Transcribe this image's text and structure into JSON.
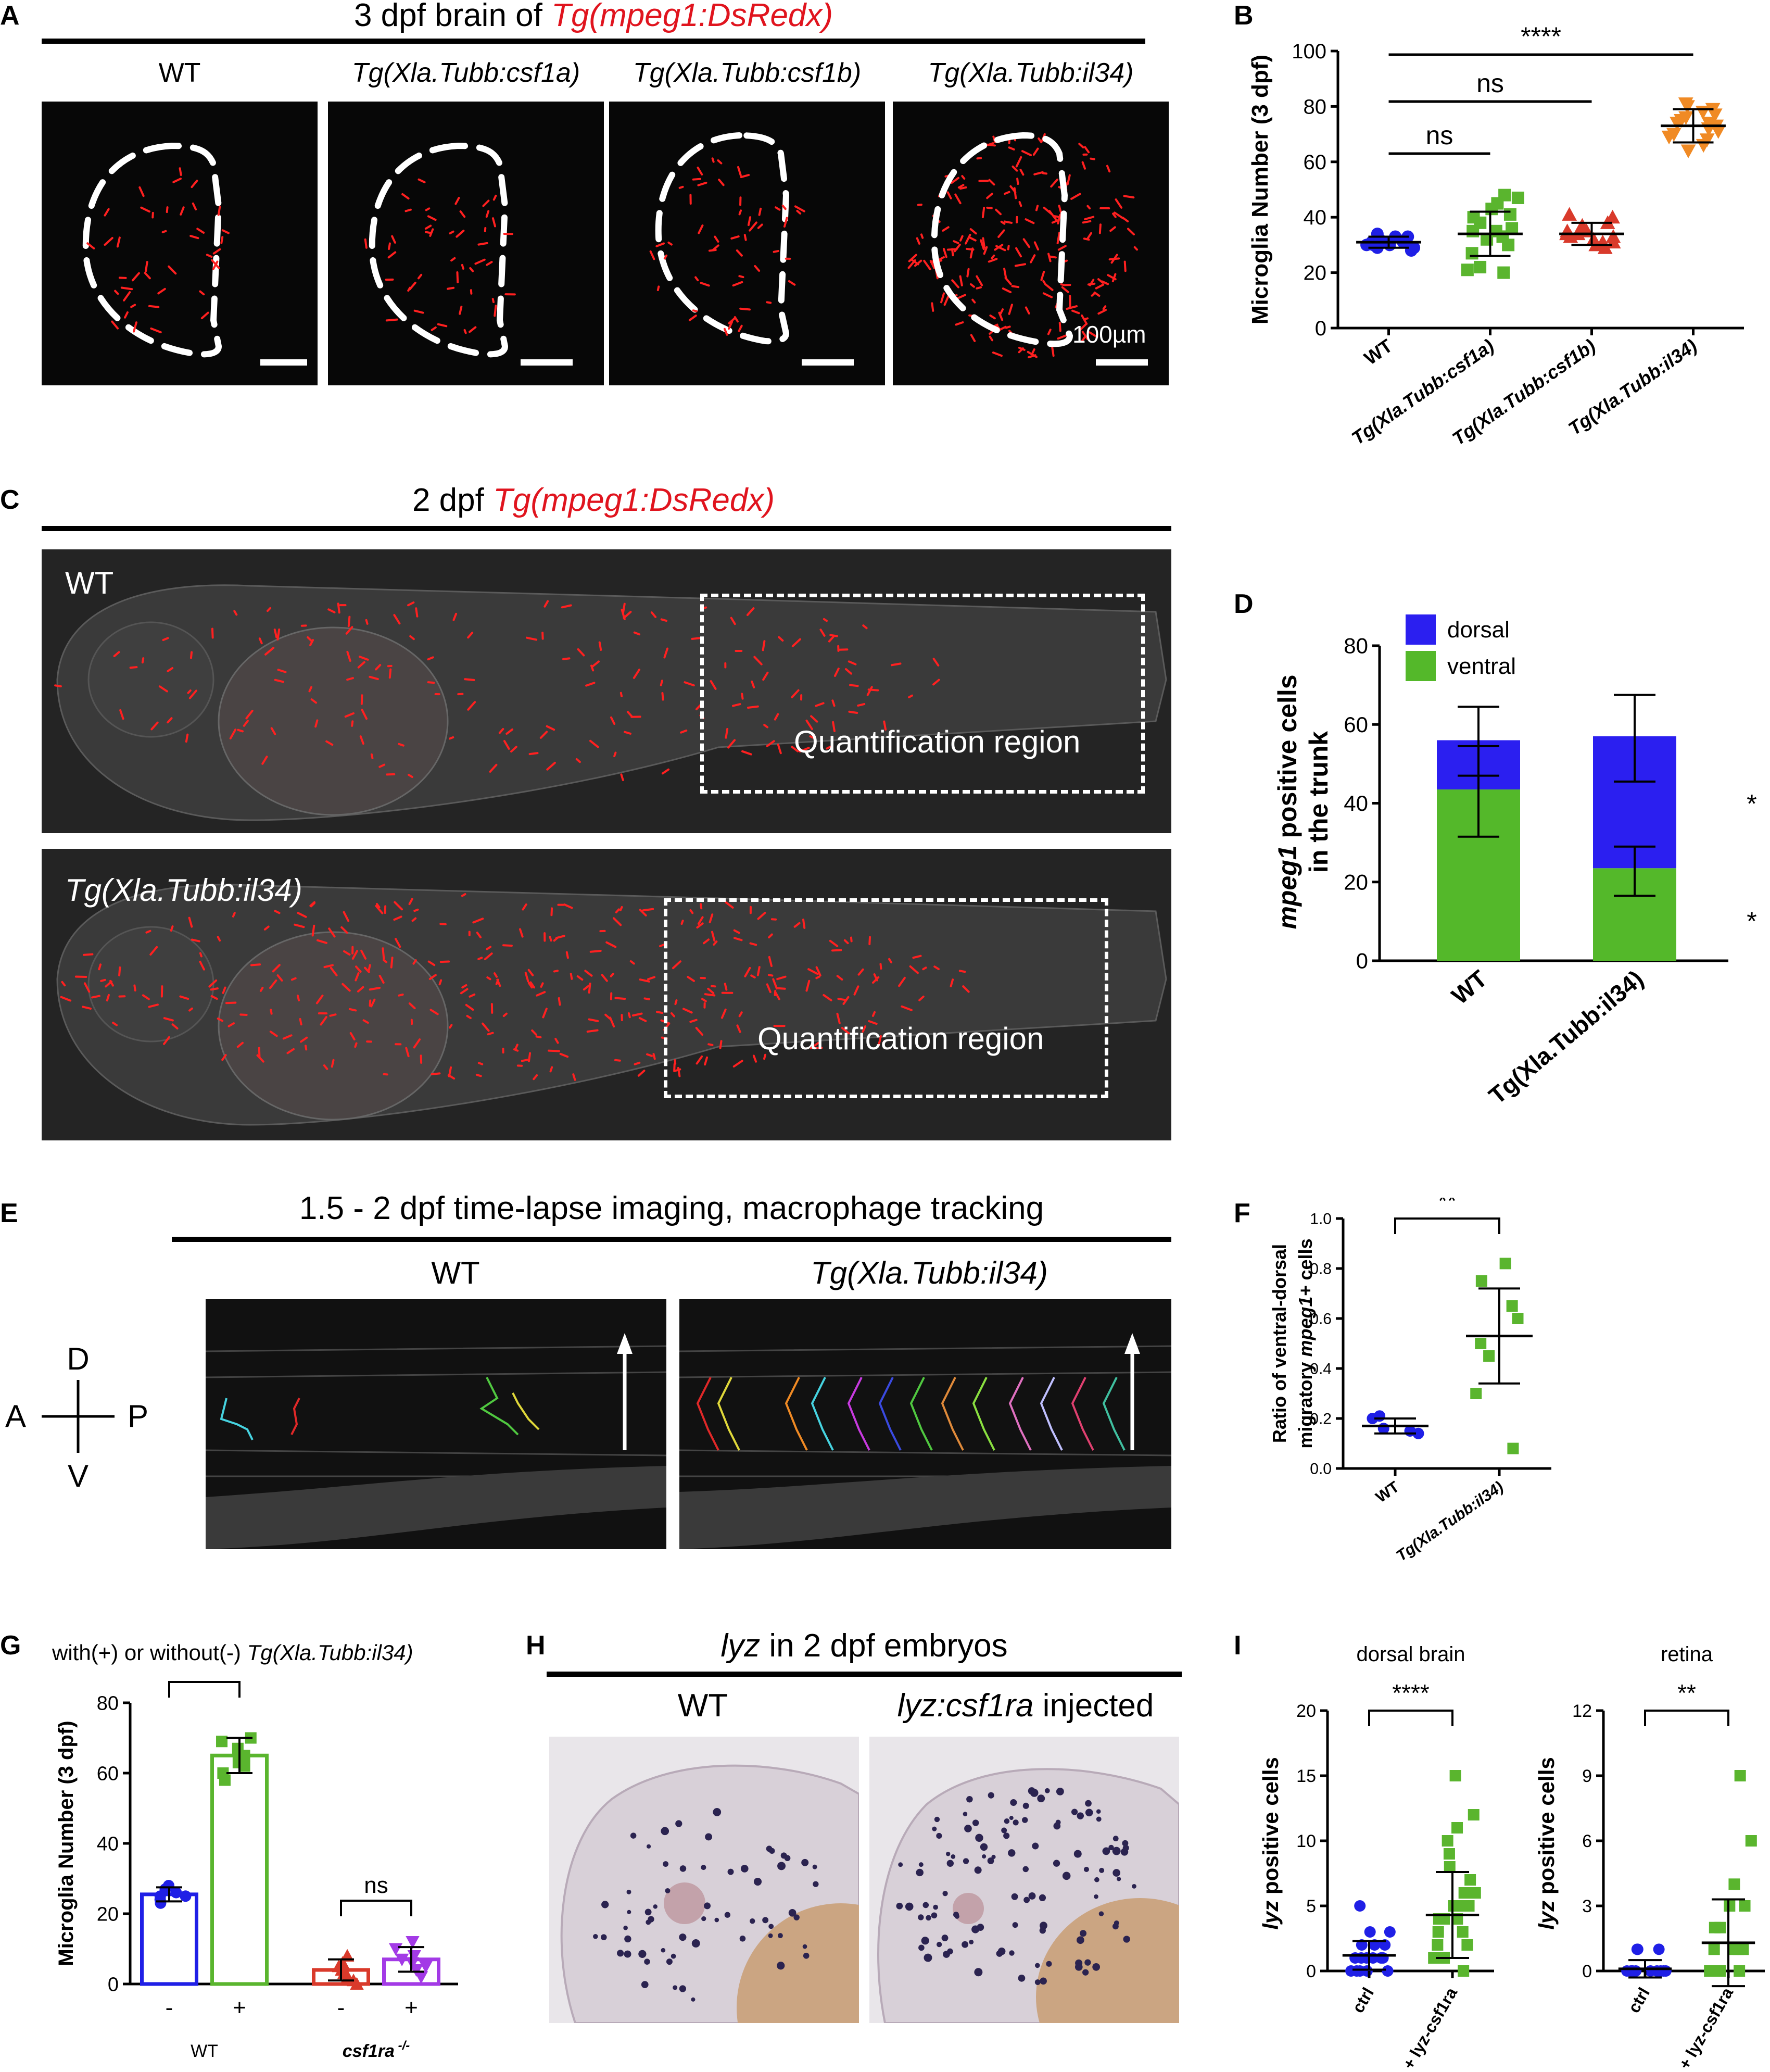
{
  "panel_letters": {
    "A": "A",
    "B": "B",
    "C": "C",
    "D": "D",
    "E": "E",
    "F": "F",
    "G": "G",
    "H": "H",
    "I": "I"
  },
  "panelA": {
    "title_prefix": "3 dpf brain of ",
    "title_transgene": "Tg(mpeg1:DsRedx)",
    "columns": [
      "WT",
      "Tg(Xla.Tubb:csf1a)",
      "Tg(Xla.Tubb:csf1b)",
      "Tg(Xla.Tubb:il34)"
    ],
    "scale_label": "100µm"
  },
  "panelC": {
    "title_prefix": "2 dpf ",
    "title_transgene": "Tg(mpeg1:DsRedx)",
    "top_label": "WT",
    "bottom_label": "Tg(Xla.Tubb:il34)",
    "region_label": "Quantification region"
  },
  "panelE": {
    "title": "1.5 - 2 dpf time-lapse imaging, macrophage tracking",
    "left_label": "WT",
    "right_label": "Tg(Xla.Tubb:il34)",
    "axis": {
      "D": "D",
      "V": "V",
      "A": "A",
      "P": "P"
    }
  },
  "panelG": {
    "header": "with(+) or without(-) ",
    "header_italic": "Tg(Xla.Tubb:il34)"
  },
  "panelH": {
    "title_italic": "lyz",
    "title_rest": " in 2 dpf embryos",
    "left_label": "WT",
    "right_label_italic": "lyz:csf1ra",
    "right_label_rest": " injected"
  },
  "chart_data": [
    {
      "id": "B",
      "type": "scatter",
      "ylabel": "Microglia Number (3 dpf)",
      "ylim": [
        0,
        100
      ],
      "yticks": [
        0,
        20,
        40,
        60,
        80,
        100
      ],
      "categories": [
        "WT",
        "Tg(Xla.Tubb:csf1a)",
        "Tg(Xla.Tubb:csf1b)",
        "Tg(Xla.Tubb:il34)"
      ],
      "colors": [
        "#1f1fe6",
        "#5ab52e",
        "#d93a2b",
        "#f08a24"
      ],
      "markers": [
        "circle",
        "square",
        "triangle-up",
        "triangle-down"
      ],
      "means": [
        31,
        34,
        34,
        73
      ],
      "sd": [
        2,
        8,
        4,
        6
      ],
      "points": [
        [
          28,
          29,
          30,
          30,
          31,
          31,
          31,
          32,
          32,
          33,
          33,
          29,
          30,
          34,
          31
        ],
        [
          20,
          21,
          22,
          27,
          30,
          33,
          35,
          35,
          38,
          40,
          41,
          43,
          45,
          47,
          48,
          36,
          32
        ],
        [
          30,
          31,
          32,
          33,
          33,
          34,
          34,
          35,
          36,
          38,
          40,
          41,
          29,
          31,
          35,
          37
        ],
        [
          64,
          66,
          68,
          69,
          71,
          72,
          73,
          74,
          75,
          76,
          77,
          78,
          79,
          80,
          81,
          72,
          70,
          74
        ]
      ],
      "comparisons": [
        {
          "from": 0,
          "to": 1,
          "label": "ns"
        },
        {
          "from": 0,
          "to": 2,
          "label": "ns"
        },
        {
          "from": 0,
          "to": 3,
          "label": "****"
        }
      ]
    },
    {
      "id": "D",
      "type": "bar",
      "ylabel": "mpeg1 positive cells in the trunk",
      "ylabel_italic": "mpeg1",
      "ylim": [
        0,
        80
      ],
      "yticks": [
        0,
        20,
        40,
        60,
        80
      ],
      "categories": [
        "WT",
        "Tg(Xla.Tubb:il34)"
      ],
      "series": [
        {
          "name": "ventral",
          "color": "#54b82a",
          "values": [
            43.5,
            23.5
          ],
          "err_low": [
            31.5,
            16.5
          ],
          "err_high": [
            54.5,
            29
          ]
        },
        {
          "name": "dorsal",
          "color": "#2b1ff0",
          "values": [
            12.5,
            33.5
          ],
          "err_low": [
            47,
            45.5
          ],
          "err_high": [
            64.5,
            67.5
          ]
        }
      ],
      "annotations": [
        "*",
        "*"
      ]
    },
    {
      "id": "F",
      "type": "scatter",
      "ylabel": "Ratio of ventral-dorsal migratory mpeg1+ cells",
      "ylim": [
        0,
        1.0
      ],
      "yticks": [
        0.0,
        0.2,
        0.4,
        0.6,
        0.8,
        1.0
      ],
      "categories": [
        "WT",
        "Tg(Xla.Tubb:il34)"
      ],
      "colors": [
        "#1f1fe6",
        "#5ab52e"
      ],
      "markers": [
        "circle",
        "square"
      ],
      "means": [
        0.17,
        0.53
      ],
      "sd": [
        0.03,
        0.19
      ],
      "points": [
        [
          0.14,
          0.16,
          0.2,
          0.21,
          0.15
        ],
        [
          0.08,
          0.3,
          0.45,
          0.5,
          0.6,
          0.65,
          0.75,
          0.82
        ]
      ],
      "comparisons": [
        {
          "from": 0,
          "to": 1,
          "label": "**"
        }
      ]
    },
    {
      "id": "G",
      "type": "bar",
      "ylabel": "Microglia Number (3 dpf)",
      "ylim": [
        0,
        80
      ],
      "yticks": [
        0,
        20,
        40,
        60,
        80
      ],
      "categories": [
        "-",
        "+",
        "-",
        "+"
      ],
      "group_labels": [
        "WT",
        "csf1ra -/-"
      ],
      "colors": [
        "#1f1fe6",
        "#5ab52e",
        "#d93a2b",
        "#a33ae6"
      ],
      "values": [
        25.5,
        65,
        4,
        7
      ],
      "sd": [
        2,
        5,
        3,
        3.5
      ],
      "points": [
        [
          23,
          24,
          25,
          26,
          27,
          28,
          25
        ],
        [
          58,
          60,
          63,
          65,
          67,
          69,
          70,
          62
        ],
        [
          0,
          1,
          2,
          3,
          4,
          6,
          8,
          5
        ],
        [
          2,
          4,
          5,
          6,
          8,
          10,
          12,
          7
        ]
      ],
      "comparisons": [
        {
          "from": 0,
          "to": 1,
          "label": "****"
        },
        {
          "from": 2,
          "to": 3,
          "label": "ns"
        }
      ]
    },
    {
      "id": "I-1",
      "type": "scatter",
      "title": "dorsal brain",
      "ylabel": "lyz positive cells",
      "ylim": [
        0,
        20
      ],
      "yticks": [
        0,
        5,
        10,
        15,
        20
      ],
      "categories": [
        "ctrl",
        "+ lyz-csf1ra"
      ],
      "colors": [
        "#1f1fe6",
        "#5ab52e"
      ],
      "markers": [
        "circle",
        "square"
      ],
      "means": [
        1.2,
        4.3
      ],
      "sd": [
        1.1,
        3.3
      ],
      "points": [
        [
          0,
          0,
          0,
          0,
          1,
          1,
          1,
          1,
          2,
          2,
          2,
          3,
          3,
          5,
          0,
          1,
          1
        ],
        [
          0,
          1,
          1,
          2,
          2,
          3,
          3,
          4,
          4,
          4,
          5,
          5,
          5,
          6,
          6,
          7,
          8,
          9,
          10,
          11,
          12,
          15
        ]
      ],
      "comparisons": [
        {
          "from": 0,
          "to": 1,
          "label": "****"
        }
      ]
    },
    {
      "id": "I-2",
      "type": "scatter",
      "title": "retina",
      "ylabel": "lyz positive cells",
      "ylim": [
        0,
        12
      ],
      "yticks": [
        0,
        3,
        6,
        9,
        12
      ],
      "categories": [
        "ctrl",
        "+ lyz-csf1ra"
      ],
      "colors": [
        "#1f1fe6",
        "#5ab52e"
      ],
      "markers": [
        "circle",
        "square"
      ],
      "means": [
        0.1,
        1.3
      ],
      "sd": [
        0.4,
        2.0
      ],
      "points": [
        [
          0,
          0,
          0,
          0,
          0,
          0,
          1,
          1,
          1,
          0,
          0,
          0
        ],
        [
          0,
          0,
          0,
          0,
          1,
          1,
          1,
          1,
          2,
          2,
          3,
          3,
          4,
          6,
          9
        ]
      ],
      "comparisons": [
        {
          "from": 0,
          "to": 1,
          "label": "**"
        }
      ]
    }
  ]
}
